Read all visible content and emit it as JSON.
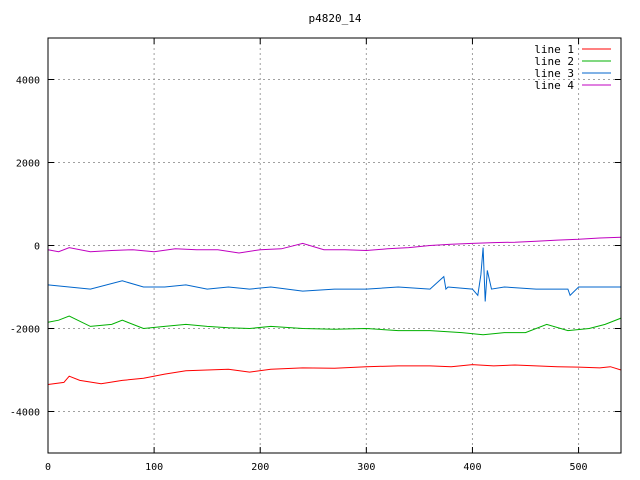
{
  "chart_data": {
    "type": "line",
    "title": "p4820_14",
    "xlabel": "",
    "ylabel": "",
    "xlim": [
      0,
      540
    ],
    "ylim": [
      -5000,
      5000
    ],
    "xticks": [
      0,
      100,
      200,
      300,
      400,
      500
    ],
    "yticks": [
      -4000,
      -2000,
      0,
      2000,
      4000
    ],
    "grid": true,
    "legend_position": "top-right",
    "series": [
      {
        "name": "line 1",
        "color": "#ff0000",
        "x": [
          0,
          15,
          20,
          30,
          50,
          70,
          90,
          110,
          130,
          150,
          170,
          190,
          210,
          240,
          270,
          300,
          330,
          360,
          380,
          400,
          420,
          440,
          460,
          480,
          500,
          520,
          530,
          540
        ],
        "y": [
          -3350,
          -3300,
          -3150,
          -3250,
          -3330,
          -3250,
          -3200,
          -3100,
          -3020,
          -3000,
          -2980,
          -3050,
          -2980,
          -2950,
          -2960,
          -2920,
          -2900,
          -2900,
          -2920,
          -2870,
          -2900,
          -2880,
          -2900,
          -2920,
          -2930,
          -2950,
          -2920,
          -3000
        ]
      },
      {
        "name": "line 2",
        "color": "#00b000",
        "x": [
          0,
          10,
          20,
          40,
          60,
          70,
          90,
          110,
          130,
          150,
          170,
          190,
          210,
          240,
          270,
          300,
          330,
          360,
          390,
          410,
          430,
          450,
          470,
          490,
          510,
          525,
          540
        ],
        "y": [
          -1850,
          -1800,
          -1700,
          -1950,
          -1900,
          -1800,
          -2000,
          -1950,
          -1900,
          -1950,
          -1980,
          -2000,
          -1950,
          -2000,
          -2020,
          -2000,
          -2050,
          -2050,
          -2100,
          -2150,
          -2100,
          -2100,
          -1900,
          -2050,
          -2000,
          -1900,
          -1750
        ]
      },
      {
        "name": "line 3",
        "color": "#0066cc",
        "x": [
          0,
          20,
          40,
          70,
          90,
          110,
          130,
          150,
          170,
          190,
          210,
          240,
          270,
          300,
          330,
          360,
          373,
          375,
          377,
          400,
          405,
          408,
          410,
          412,
          414,
          418,
          430,
          460,
          490,
          492,
          500,
          520,
          540
        ],
        "y": [
          -950,
          -1000,
          -1050,
          -850,
          -1000,
          -1000,
          -950,
          -1050,
          -1000,
          -1050,
          -1000,
          -1100,
          -1050,
          -1050,
          -1000,
          -1050,
          -750,
          -1050,
          -1000,
          -1050,
          -1200,
          -700,
          -50,
          -1350,
          -600,
          -1050,
          -1000,
          -1050,
          -1050,
          -1200,
          -1000,
          -1000,
          -1000
        ]
      },
      {
        "name": "line 4",
        "color": "#c000c0",
        "x": [
          0,
          10,
          20,
          40,
          60,
          80,
          100,
          120,
          140,
          160,
          180,
          200,
          220,
          240,
          260,
          280,
          300,
          320,
          340,
          360,
          380,
          400,
          420,
          440,
          460,
          480,
          500,
          520,
          540
        ],
        "y": [
          -100,
          -150,
          -50,
          -150,
          -120,
          -100,
          -150,
          -80,
          -100,
          -100,
          -180,
          -100,
          -80,
          50,
          -100,
          -100,
          -120,
          -80,
          -50,
          0,
          30,
          50,
          70,
          80,
          100,
          130,
          150,
          180,
          200
        ]
      }
    ]
  }
}
